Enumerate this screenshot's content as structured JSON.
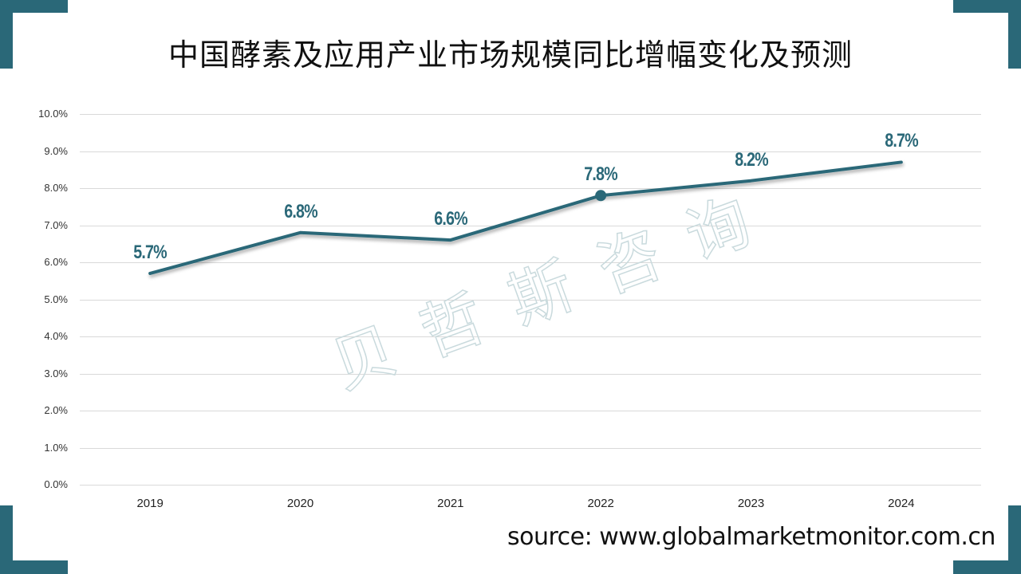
{
  "title": "中国酵素及应用产业市场规模同比增幅变化及预测",
  "watermark": "贝哲斯咨询",
  "source": "source: www.globalmarketmonitor.com.cn",
  "colors": {
    "accent": "#2a6878",
    "grid": "#d9d9d9",
    "watermark": "#c9dadd"
  },
  "chart_data": {
    "type": "line",
    "title": "中国酵素及应用产业市场规模同比增幅变化及预测",
    "xlabel": "",
    "ylabel": "",
    "categories": [
      "2019",
      "2020",
      "2021",
      "2022",
      "2023",
      "2024"
    ],
    "series": [
      {
        "name": "同比增幅",
        "values": [
          5.7,
          6.8,
          6.6,
          7.8,
          8.2,
          8.7
        ],
        "unit": "%"
      }
    ],
    "data_labels": [
      "5.7%",
      "6.8%",
      "6.6%",
      "7.8%",
      "8.2%",
      "8.7%"
    ],
    "y_ticks": [
      "0.0%",
      "1.0%",
      "2.0%",
      "3.0%",
      "4.0%",
      "5.0%",
      "6.0%",
      "7.0%",
      "8.0%",
      "9.0%",
      "10.0%"
    ],
    "ylim": [
      0,
      10
    ],
    "grid": true,
    "legend": "none",
    "highlighted_point": "2022"
  }
}
